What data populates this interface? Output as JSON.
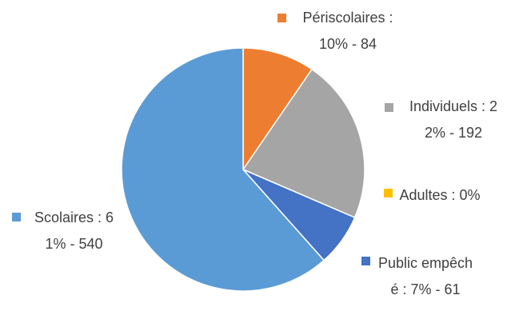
{
  "chart_data": {
    "type": "pie",
    "categories": [
      "Périscolaires",
      "Individuels",
      "Adultes",
      "Public empêché",
      "Scolaires"
    ],
    "values": [
      84,
      192,
      0,
      61,
      540
    ],
    "value_labels": [
      "Périscolaires : 10% - 84",
      "Individuels : 22% - 192",
      "Adultes : 0%",
      "Public empêché : 7% - 61",
      "Scolaires : 61% - 540"
    ],
    "colors": [
      "#ed7d31",
      "#a5a5a5",
      "#ffc000",
      "#4472c4",
      "#5b9bd5"
    ]
  }
}
